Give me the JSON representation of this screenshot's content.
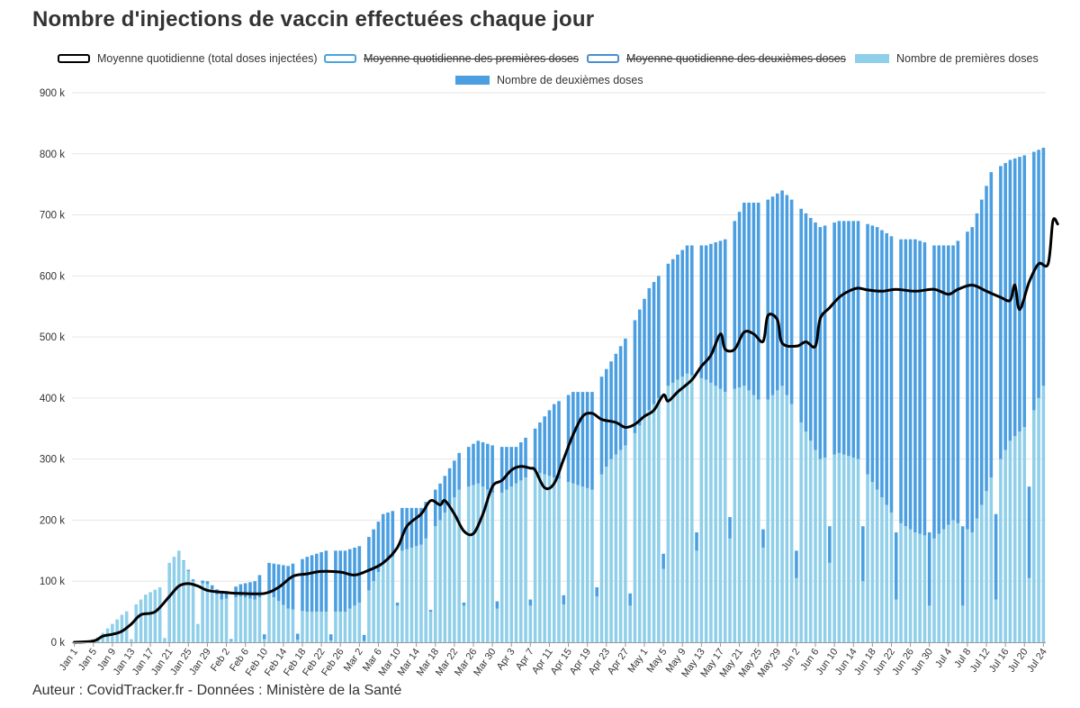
{
  "title": "Nombre d'injections de vaccin effectuées chaque jour",
  "footer": "Auteur : CovidTracker.fr - Données : Ministère de la Santé",
  "colors": {
    "first_doses": "#90cfe9",
    "second_doses": "#4b9fe1",
    "average": "#000000",
    "grid": "#e6e6e6",
    "axis_text": "#333333"
  },
  "legend": [
    {
      "label": "Moyenne quotidienne (total doses injectées)",
      "style": "line-black",
      "hidden": false
    },
    {
      "label": "Moyenne quotidienne des premières doses",
      "style": "line-blue",
      "hidden": true
    },
    {
      "label": "Moyenne quotidienne des deuxièmes doses",
      "style": "line-blue",
      "hidden": true
    },
    {
      "label": "Nombre de premières doses",
      "style": "fill-light",
      "hidden": false
    },
    {
      "label": "Nombre de deuxièmes doses",
      "style": "fill-dark",
      "hidden": false
    }
  ],
  "chart_data": {
    "type": "bar",
    "stacked": true,
    "title": "Nombre d'injections de vaccin effectuées chaque jour",
    "xlabel": "",
    "ylabel": "",
    "ylim": [
      0,
      900000
    ],
    "yticks": [
      0,
      100000,
      200000,
      300000,
      400000,
      500000,
      600000,
      700000,
      800000,
      900000
    ],
    "ytick_labels": [
      "0 k",
      "100 k",
      "200 k",
      "300 k",
      "400 k",
      "500 k",
      "600 k",
      "700 k",
      "800 k",
      "900 k"
    ],
    "first_day": "Jan 1",
    "num_days": 205,
    "xtick_labels": [
      "Jan 1",
      "Jan 5",
      "Jan 9",
      "Jan 13",
      "Jan 17",
      "Jan 21",
      "Jan 25",
      "Jan 29",
      "Feb 2",
      "Feb 6",
      "Feb 10",
      "Feb 14",
      "Feb 18",
      "Feb 22",
      "Feb 26",
      "Mar 2",
      "Mar 6",
      "Mar 10",
      "Mar 14",
      "Mar 18",
      "Mar 22",
      "Mar 26",
      "Mar 30",
      "Apr 3",
      "Apr 7",
      "Apr 11",
      "Apr 15",
      "Apr 19",
      "Apr 23",
      "Apr 27",
      "May 1",
      "May 5",
      "May 9",
      "May 13",
      "May 17",
      "May 21",
      "May 25",
      "May 29",
      "Jun 2",
      "Jun 6",
      "Jun 10",
      "Jun 14",
      "Jun 18",
      "Jun 22",
      "Jun 26",
      "Jun 30",
      "Jul 4",
      "Jul 8",
      "Jul 12",
      "Jul 16",
      "Jul 20",
      "Jul 24"
    ],
    "xtick_every_days": 4,
    "legend_position": "top",
    "grid": true,
    "series": [
      {
        "name": "Nombre de premières doses",
        "kind": "bar",
        "anchors": [
          [
            0,
            1000
          ],
          [
            3,
            2000
          ],
          [
            5,
            8000
          ],
          [
            8,
            30000
          ],
          [
            10,
            45000
          ],
          [
            13,
            62000
          ],
          [
            15,
            78000
          ],
          [
            18,
            90000
          ],
          [
            20,
            130000
          ],
          [
            22,
            150000
          ],
          [
            25,
            100000
          ],
          [
            28,
            95000
          ],
          [
            31,
            70000
          ],
          [
            35,
            75000
          ],
          [
            38,
            70000
          ],
          [
            41,
            80000
          ],
          [
            45,
            55000
          ],
          [
            49,
            50000
          ],
          [
            53,
            50000
          ],
          [
            57,
            50000
          ],
          [
            61,
            70000
          ],
          [
            65,
            130000
          ],
          [
            69,
            150000
          ],
          [
            73,
            160000
          ],
          [
            77,
            200000
          ],
          [
            81,
            250000
          ],
          [
            85,
            260000
          ],
          [
            89,
            240000
          ],
          [
            93,
            260000
          ],
          [
            97,
            280000
          ],
          [
            101,
            270000
          ],
          [
            105,
            260000
          ],
          [
            109,
            250000
          ],
          [
            113,
            300000
          ],
          [
            117,
            330000
          ],
          [
            121,
            380000
          ],
          [
            125,
            420000
          ],
          [
            129,
            440000
          ],
          [
            133,
            430000
          ],
          [
            137,
            410000
          ],
          [
            141,
            420000
          ],
          [
            145,
            390000
          ],
          [
            149,
            420000
          ],
          [
            153,
            360000
          ],
          [
            157,
            300000
          ],
          [
            161,
            310000
          ],
          [
            165,
            300000
          ],
          [
            169,
            250000
          ],
          [
            173,
            200000
          ],
          [
            177,
            180000
          ],
          [
            181,
            170000
          ],
          [
            185,
            200000
          ],
          [
            189,
            180000
          ],
          [
            193,
            270000
          ],
          [
            197,
            330000
          ],
          [
            201,
            360000
          ],
          [
            204,
            420000
          ]
        ],
        "weekend_values": [
          [
            12,
            5000
          ],
          [
            19,
            7000
          ],
          [
            26,
            30000
          ],
          [
            33,
            3000
          ],
          [
            40,
            5000
          ],
          [
            47,
            4000
          ],
          [
            54,
            3000
          ],
          [
            61,
            2000
          ],
          [
            68,
            60000
          ],
          [
            75,
            50000
          ],
          [
            82,
            60000
          ],
          [
            89,
            55000
          ],
          [
            96,
            60000
          ],
          [
            103,
            62000
          ],
          [
            110,
            75000
          ],
          [
            117,
            60000
          ],
          [
            124,
            120000
          ],
          [
            131,
            150000
          ],
          [
            138,
            170000
          ],
          [
            145,
            155000
          ],
          [
            152,
            105000
          ],
          [
            159,
            130000
          ],
          [
            166,
            100000
          ],
          [
            173,
            70000
          ],
          [
            180,
            60000
          ],
          [
            187,
            60000
          ],
          [
            194,
            70000
          ],
          [
            201,
            105000
          ]
        ]
      },
      {
        "name": "Nombre de deuxièmes doses",
        "kind": "bar",
        "anchors": [
          [
            0,
            0
          ],
          [
            18,
            0
          ],
          [
            22,
            0
          ],
          [
            25,
            3000
          ],
          [
            28,
            5000
          ],
          [
            31,
            10000
          ],
          [
            35,
            20000
          ],
          [
            38,
            30000
          ],
          [
            41,
            50000
          ],
          [
            45,
            70000
          ],
          [
            49,
            90000
          ],
          [
            53,
            100000
          ],
          [
            57,
            100000
          ],
          [
            61,
            90000
          ],
          [
            65,
            80000
          ],
          [
            69,
            70000
          ],
          [
            73,
            60000
          ],
          [
            77,
            60000
          ],
          [
            81,
            60000
          ],
          [
            85,
            70000
          ],
          [
            89,
            80000
          ],
          [
            93,
            60000
          ],
          [
            97,
            70000
          ],
          [
            101,
            120000
          ],
          [
            105,
            150000
          ],
          [
            109,
            160000
          ],
          [
            113,
            160000
          ],
          [
            117,
            180000
          ],
          [
            121,
            200000
          ],
          [
            125,
            200000
          ],
          [
            129,
            210000
          ],
          [
            133,
            220000
          ],
          [
            137,
            250000
          ],
          [
            141,
            300000
          ],
          [
            145,
            330000
          ],
          [
            149,
            320000
          ],
          [
            153,
            350000
          ],
          [
            157,
            380000
          ],
          [
            161,
            380000
          ],
          [
            165,
            390000
          ],
          [
            169,
            430000
          ],
          [
            173,
            460000
          ],
          [
            177,
            480000
          ],
          [
            181,
            480000
          ],
          [
            185,
            450000
          ],
          [
            189,
            500000
          ],
          [
            193,
            500000
          ],
          [
            197,
            460000
          ],
          [
            201,
            440000
          ],
          [
            204,
            390000
          ]
        ],
        "weekend_values": [
          [
            12,
            0
          ],
          [
            19,
            0
          ],
          [
            26,
            0
          ],
          [
            33,
            2000
          ],
          [
            40,
            8000
          ],
          [
            47,
            10000
          ],
          [
            54,
            10000
          ],
          [
            61,
            10000
          ],
          [
            68,
            5000
          ],
          [
            75,
            3000
          ],
          [
            82,
            5000
          ],
          [
            89,
            12000
          ],
          [
            96,
            10000
          ],
          [
            103,
            15000
          ],
          [
            110,
            15000
          ],
          [
            117,
            20000
          ],
          [
            124,
            25000
          ],
          [
            131,
            30000
          ],
          [
            138,
            35000
          ],
          [
            145,
            30000
          ],
          [
            152,
            45000
          ],
          [
            159,
            60000
          ],
          [
            166,
            90000
          ],
          [
            173,
            110000
          ],
          [
            180,
            120000
          ],
          [
            187,
            130000
          ],
          [
            194,
            140000
          ],
          [
            201,
            150000
          ]
        ]
      },
      {
        "name": "Moyenne quotidienne (total doses injectées)",
        "kind": "line",
        "points": [
          [
            0,
            0
          ],
          [
            4,
            2000
          ],
          [
            6,
            10000
          ],
          [
            8,
            13000
          ],
          [
            10,
            18000
          ],
          [
            12,
            30000
          ],
          [
            14,
            45000
          ],
          [
            17,
            50000
          ],
          [
            20,
            75000
          ],
          [
            22,
            92000
          ],
          [
            24,
            96000
          ],
          [
            26,
            92000
          ],
          [
            28,
            85000
          ],
          [
            31,
            82000
          ],
          [
            35,
            80000
          ],
          [
            40,
            80000
          ],
          [
            43,
            90000
          ],
          [
            46,
            108000
          ],
          [
            49,
            112000
          ],
          [
            52,
            116000
          ],
          [
            56,
            115000
          ],
          [
            59,
            110000
          ],
          [
            62,
            118000
          ],
          [
            65,
            130000
          ],
          [
            68,
            155000
          ],
          [
            70,
            190000
          ],
          [
            73,
            210000
          ],
          [
            75,
            232000
          ],
          [
            77,
            225000
          ],
          [
            78,
            232000
          ],
          [
            80,
            210000
          ],
          [
            82,
            182000
          ],
          [
            84,
            178000
          ],
          [
            86,
            210000
          ],
          [
            88,
            255000
          ],
          [
            90,
            265000
          ],
          [
            92,
            282000
          ],
          [
            94,
            288000
          ],
          [
            96,
            285000
          ],
          [
            97,
            282000
          ],
          [
            99,
            253000
          ],
          [
            101,
            260000
          ],
          [
            103,
            300000
          ],
          [
            105,
            340000
          ],
          [
            107,
            370000
          ],
          [
            109,
            375000
          ],
          [
            111,
            365000
          ],
          [
            114,
            360000
          ],
          [
            116,
            352000
          ],
          [
            118,
            357000
          ],
          [
            120,
            370000
          ],
          [
            122,
            380000
          ],
          [
            124,
            405000
          ],
          [
            125,
            395000
          ],
          [
            127,
            410000
          ],
          [
            130,
            430000
          ],
          [
            132,
            452000
          ],
          [
            134,
            470000
          ],
          [
            136,
            505000
          ],
          [
            137,
            480000
          ],
          [
            139,
            480000
          ],
          [
            141,
            508000
          ],
          [
            143,
            505000
          ],
          [
            145,
            493000
          ],
          [
            146,
            535000
          ],
          [
            148,
            528000
          ],
          [
            149,
            490000
          ],
          [
            152,
            485000
          ],
          [
            154,
            492000
          ],
          [
            156,
            485000
          ],
          [
            157,
            530000
          ],
          [
            159,
            548000
          ],
          [
            161,
            565000
          ],
          [
            163,
            575000
          ],
          [
            165,
            580000
          ],
          [
            167,
            577000
          ],
          [
            170,
            575000
          ],
          [
            173,
            578000
          ],
          [
            177,
            575000
          ],
          [
            181,
            578000
          ],
          [
            184,
            570000
          ],
          [
            186,
            578000
          ],
          [
            189,
            585000
          ],
          [
            192,
            575000
          ],
          [
            195,
            565000
          ],
          [
            197,
            560000
          ],
          [
            198,
            585000
          ],
          [
            199,
            545000
          ],
          [
            201,
            590000
          ],
          [
            203,
            620000
          ],
          [
            205,
            620000
          ],
          [
            206,
            690000
          ],
          [
            207,
            685000
          ]
        ]
      }
    ]
  }
}
